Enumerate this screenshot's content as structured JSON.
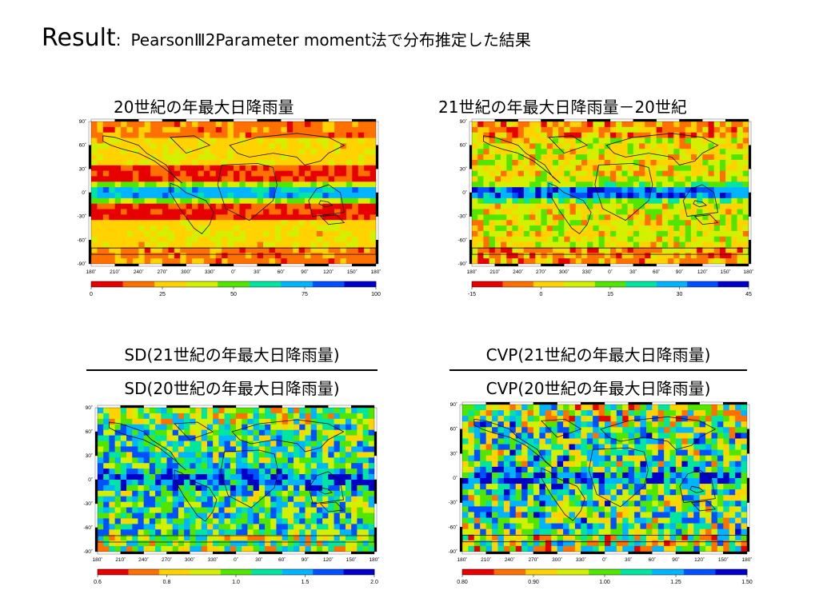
{
  "slide": {
    "title_main": "Result",
    "title_sep": ":",
    "title_sub": "PearsonⅢ2Parameter moment法で分布推定した結果"
  },
  "panels": [
    {
      "id": "p1",
      "title": "20世紀の年最大日降雨量",
      "colorbar": {
        "ticks": [
          "0",
          "25",
          "50",
          "75",
          "100"
        ]
      },
      "field": {
        "base": 0.3,
        "itcz": 0.55,
        "noise": 0.08,
        "seed": 3,
        "deserts": true
      }
    },
    {
      "id": "p2",
      "title": "21世紀の年最大日降雨量－20世紀",
      "colorbar": {
        "ticks": [
          "-15",
          "0",
          "15",
          "30",
          "45"
        ]
      },
      "field": {
        "base": 0.35,
        "itcz": 0.6,
        "noise": 0.16,
        "seed": 7,
        "deserts": false
      }
    },
    {
      "id": "p3",
      "title_numerator": "SD(21世紀の年最大日降雨量)",
      "title_denominator": "SD(20世紀の年最大日降雨量)",
      "colorbar": {
        "ticks": [
          "0.6",
          "0.8",
          "1.0",
          "1.5",
          "2.0"
        ]
      },
      "field": {
        "base": 0.58,
        "itcz": 0.35,
        "noise": 0.3,
        "seed": 11,
        "deserts": false
      }
    },
    {
      "id": "p4",
      "title_numerator": "CVP(21世紀の年最大日降雨量)",
      "title_denominator": "CVP(20世紀の年最大日降雨量)",
      "colorbar": {
        "ticks": [
          "0.80",
          "0.90",
          "1.00",
          "1.25",
          "1.50"
        ]
      },
      "field": {
        "base": 0.55,
        "itcz": 0.35,
        "noise": 0.36,
        "seed": 19,
        "deserts": false
      }
    }
  ],
  "map_axes": {
    "lat_ticks": [
      "90˚",
      "60˚",
      "30˚",
      "0˚",
      "-30˚",
      "-60˚",
      "-90˚"
    ],
    "lon_ticks": [
      "180˚",
      "210˚",
      "240˚",
      "270˚",
      "300˚",
      "330˚",
      "0˚",
      "30˚",
      "60˚",
      "90˚",
      "120˚",
      "150˚",
      "180˚"
    ]
  },
  "colors": {
    "palette": [
      "#e60000",
      "#ff7000",
      "#ffd200",
      "#d2f000",
      "#50e600",
      "#00e6a0",
      "#00b4ff",
      "#0050ff",
      "#0000c8"
    ],
    "coastline": "#111111"
  }
}
